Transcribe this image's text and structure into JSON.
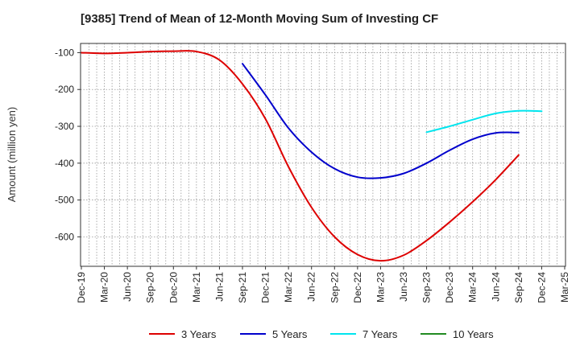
{
  "chart_data": {
    "type": "line",
    "title": "[9385]  Trend of Mean of 12-Month Moving Sum of Investing CF",
    "xlabel": "",
    "ylabel": "Amount (million yen)",
    "ylim": [
      -680,
      -75
    ],
    "yticks": [
      -100,
      -200,
      -300,
      -400,
      -500,
      -600
    ],
    "ytick_labels": [
      "-100",
      "-200",
      "-300",
      "-400",
      "-500",
      "-600"
    ],
    "categories": [
      "Dec-19",
      "Mar-20",
      "Jun-20",
      "Sep-20",
      "Dec-20",
      "Mar-21",
      "Jun-21",
      "Sep-21",
      "Dec-21",
      "Mar-22",
      "Jun-22",
      "Sep-22",
      "Dec-22",
      "Mar-23",
      "Jun-23",
      "Sep-23",
      "Dec-23",
      "Mar-24",
      "Jun-24",
      "Sep-24",
      "Dec-24",
      "Mar-25"
    ],
    "grid": true,
    "legend": "bottom",
    "series": [
      {
        "name": "3 Years",
        "color": "#dd0000",
        "values": [
          -100,
          -102,
          -100,
          -97,
          -96,
          -97,
          -120,
          -185,
          -280,
          -410,
          -520,
          -600,
          -648,
          -665,
          -650,
          -610,
          -560,
          -505,
          -445,
          -378,
          null,
          null
        ]
      },
      {
        "name": "5 Years",
        "color": "#0000cc",
        "values": [
          null,
          null,
          null,
          null,
          null,
          null,
          null,
          -130,
          -215,
          -305,
          -370,
          -415,
          -438,
          -440,
          -428,
          -400,
          -365,
          -335,
          -318,
          -317,
          null,
          null
        ]
      },
      {
        "name": "7 Years",
        "color": "#00e5ee",
        "values": [
          null,
          null,
          null,
          null,
          null,
          null,
          null,
          null,
          null,
          null,
          null,
          null,
          null,
          null,
          null,
          -316,
          -300,
          -282,
          -265,
          -258,
          -259,
          null
        ]
      },
      {
        "name": "10 Years",
        "color": "#228b22",
        "values": [
          null,
          null,
          null,
          null,
          null,
          null,
          null,
          null,
          null,
          null,
          null,
          null,
          null,
          null,
          null,
          null,
          null,
          null,
          null,
          null,
          null,
          null
        ]
      }
    ]
  }
}
